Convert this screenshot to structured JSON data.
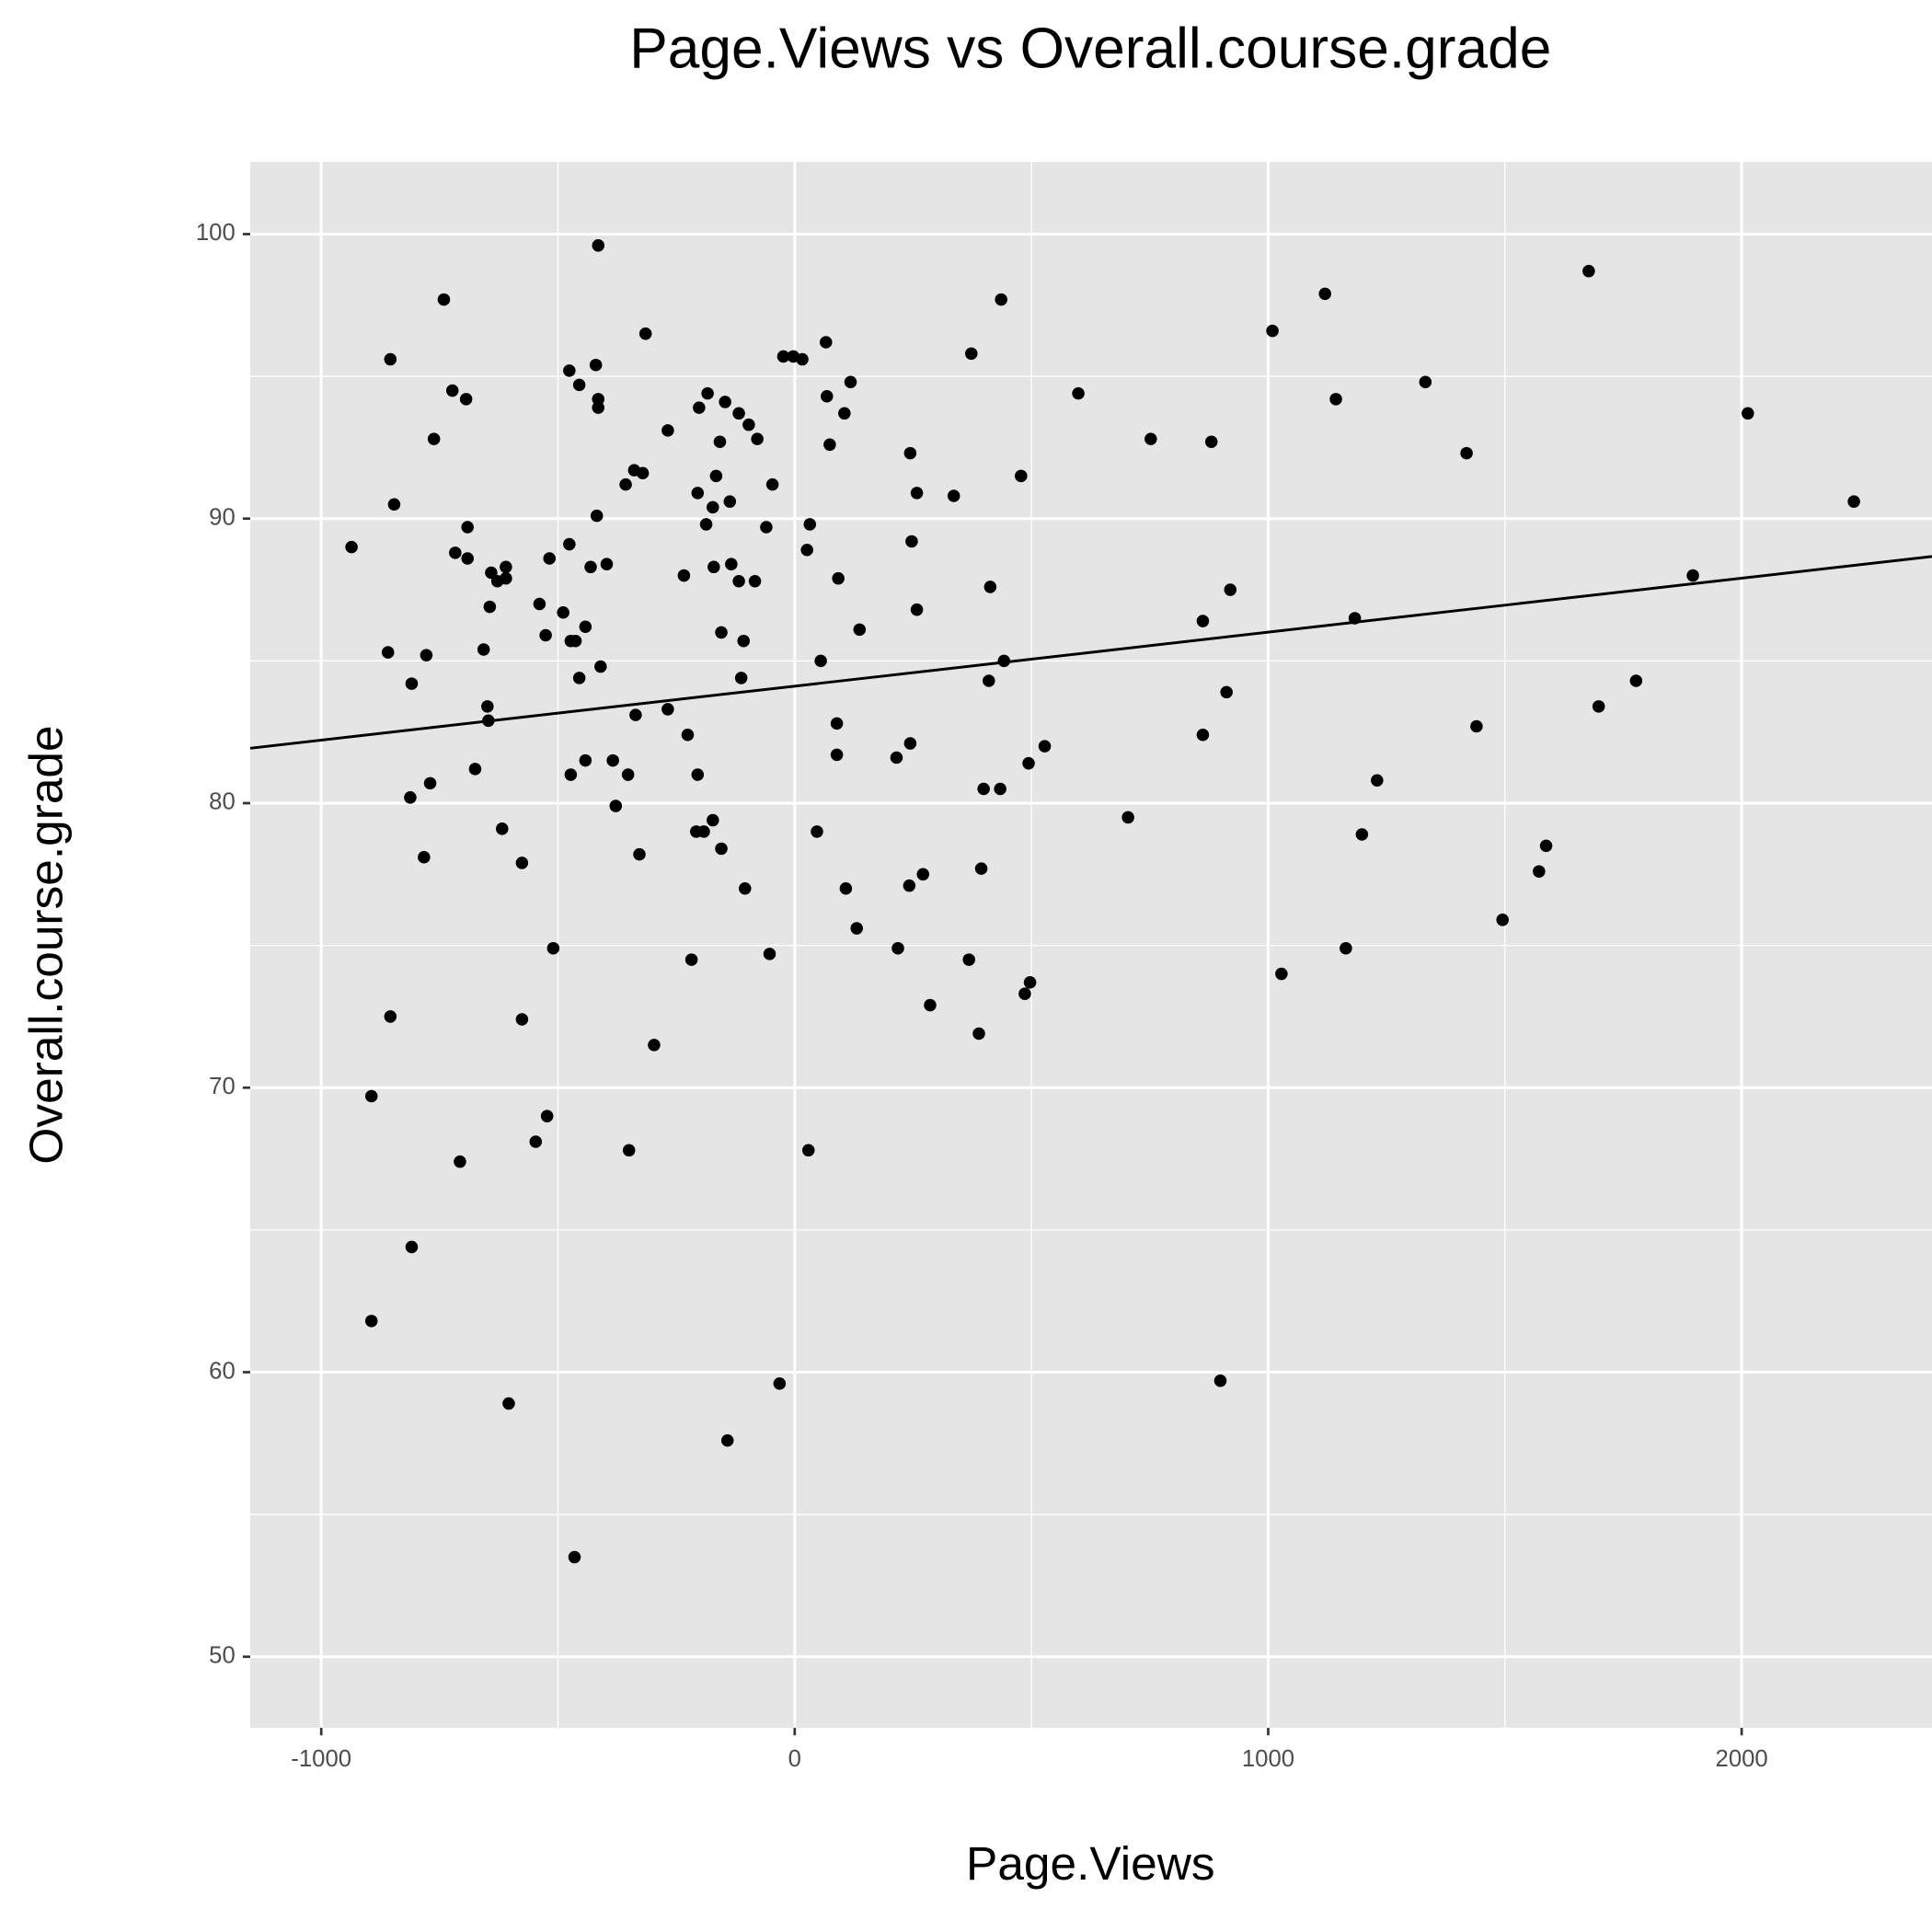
{
  "chart_data": {
    "type": "scatter",
    "title": "Page.Views vs Overall.course.grade",
    "x_label": "Page.Views",
    "y_label": "Overall.course.grade",
    "color": "#000000",
    "grid": true,
    "xlim": [
      -1150,
      2402
    ],
    "ylim": [
      47.5,
      102.54
    ],
    "xticks": [
      -1000,
      0,
      1000,
      2000
    ],
    "yticks": [
      50,
      60,
      70,
      80,
      90,
      100
    ],
    "xminor": [
      -500,
      500,
      1500
    ],
    "yminor": [
      55,
      65,
      75,
      85,
      95
    ],
    "trend_line": {
      "x": [
        -1150,
        2402
      ],
      "values": [
        81.93,
        88.67
      ]
    },
    "x": [
      -936,
      -854,
      -846,
      -859,
      -809,
      -778,
      -741,
      -723,
      -694,
      -762,
      -691,
      -717,
      -691,
      -641,
      -628,
      -610,
      -610,
      -644,
      -657,
      -649,
      -647,
      -812,
      -770,
      -675,
      -783,
      -618,
      -576,
      -854,
      -576,
      -894,
      -707,
      -809,
      -894,
      -604,
      -523,
      -547,
      -510,
      -539,
      -518,
      -526,
      -489,
      -476,
      -455,
      -420,
      -415,
      -415,
      -415,
      -418,
      -476,
      -431,
      -397,
      -442,
      -473,
      -463,
      -455,
      -410,
      -442,
      -473,
      -465,
      -384,
      -378,
      -352,
      -336,
      -328,
      -297,
      -350,
      -315,
      -339,
      -321,
      -357,
      -268,
      -268,
      -234,
      -226,
      -218,
      -208,
      -192,
      -205,
      -205,
      -202,
      -184,
      -187,
      -173,
      -166,
      -158,
      -147,
      -137,
      -171,
      -134,
      -118,
      -155,
      -108,
      -113,
      -173,
      -155,
      -105,
      -142,
      -118,
      -97,
      -79,
      -84,
      -60,
      -47,
      -53,
      -32,
      -24,
      -3,
      16,
      26,
      32,
      66,
      68,
      118,
      105,
      74,
      92,
      55,
      89,
      89,
      47,
      108,
      131,
      137,
      29,
      244,
      258,
      247,
      258,
      244,
      215,
      242,
      271,
      218,
      286,
      336,
      373,
      436,
      413,
      410,
      442,
      399,
      434,
      394,
      368,
      389,
      478,
      494,
      528,
      486,
      497,
      599,
      704,
      752,
      880,
      920,
      862,
      912,
      862,
      899,
      1009,
      1028,
      1120,
      1143,
      1183,
      1230,
      1198,
      1164,
      1332,
      1419,
      1440,
      1495,
      1572,
      1587,
      1677,
      1698,
      1777,
      1897,
      2013,
      2237
    ],
    "values": [
      89.0,
      95.6,
      90.5,
      85.3,
      84.2,
      85.2,
      97.7,
      94.5,
      94.2,
      92.8,
      89.7,
      88.8,
      88.6,
      88.1,
      87.8,
      88.3,
      87.9,
      86.9,
      85.4,
      83.4,
      82.9,
      80.2,
      80.7,
      81.2,
      78.1,
      79.1,
      77.9,
      72.5,
      72.4,
      69.7,
      67.4,
      64.4,
      61.8,
      58.9,
      69.0,
      68.1,
      74.9,
      87.0,
      88.6,
      85.9,
      86.7,
      95.2,
      94.7,
      95.4,
      99.6,
      94.2,
      93.9,
      90.1,
      89.1,
      88.3,
      88.4,
      86.2,
      85.7,
      85.7,
      84.4,
      84.8,
      81.5,
      81.0,
      53.5,
      81.5,
      79.9,
      81.0,
      83.1,
      78.2,
      71.5,
      67.8,
      96.5,
      91.7,
      91.6,
      91.2,
      93.1,
      83.3,
      88.0,
      82.4,
      74.5,
      79.0,
      79.0,
      81.0,
      90.9,
      93.9,
      94.4,
      89.8,
      90.4,
      91.5,
      92.7,
      94.1,
      90.6,
      88.3,
      88.4,
      87.8,
      86.0,
      85.7,
      84.4,
      79.4,
      78.4,
      77.0,
      57.6,
      93.7,
      93.3,
      92.8,
      87.8,
      89.7,
      91.2,
      74.7,
      59.6,
      95.7,
      95.7,
      95.6,
      88.9,
      89.8,
      96.2,
      94.3,
      94.8,
      93.7,
      92.6,
      87.9,
      85.0,
      82.8,
      81.7,
      79.0,
      77.0,
      75.6,
      86.1,
      67.8,
      92.3,
      90.9,
      89.2,
      86.8,
      82.1,
      81.6,
      77.1,
      77.5,
      74.9,
      72.9,
      90.8,
      95.8,
      97.7,
      87.6,
      84.3,
      85.0,
      80.5,
      80.5,
      77.7,
      74.5,
      71.9,
      91.5,
      81.4,
      82.0,
      73.3,
      73.7,
      94.4,
      79.5,
      92.8,
      92.7,
      87.5,
      86.4,
      83.9,
      82.4,
      59.7,
      96.6,
      74.0,
      97.9,
      94.2,
      86.5,
      80.8,
      78.9,
      74.9,
      94.8,
      92.3,
      82.7,
      75.9,
      77.6,
      78.5,
      98.7,
      83.4,
      84.3,
      88.0,
      93.7,
      90.6
    ]
  }
}
